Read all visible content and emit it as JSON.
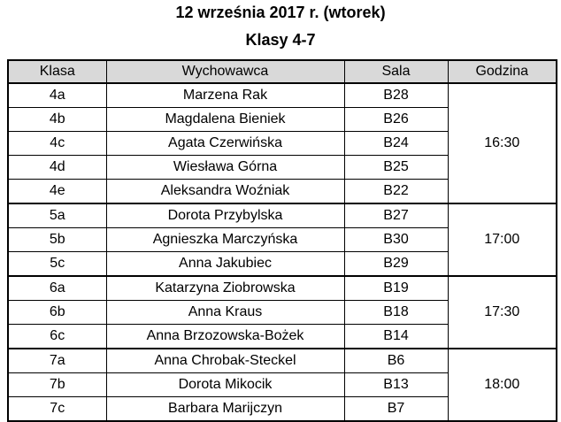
{
  "header": {
    "title": "12 września 2017 r. (wtorek)",
    "subtitle": "Klasy 4-7"
  },
  "table": {
    "columns": [
      "Klasa",
      "Wychowawca",
      "Sala",
      "Godzina"
    ],
    "groups": [
      {
        "time": "16:30",
        "rows": [
          [
            "4a",
            "Marzena Rak",
            "B28"
          ],
          [
            "4b",
            "Magdalena Bieniek",
            "B26"
          ],
          [
            "4c",
            "Agata Czerwińska",
            "B24"
          ],
          [
            "4d",
            "Wiesława Górna",
            "B25"
          ],
          [
            "4e",
            "Aleksandra Woźniak",
            "B22"
          ]
        ]
      },
      {
        "time": "17:00",
        "rows": [
          [
            "5a",
            "Dorota Przybylska",
            "B27"
          ],
          [
            "5b",
            "Agnieszka Marczyńska",
            "B30"
          ],
          [
            "5c",
            "Anna Jakubiec",
            "B29"
          ]
        ]
      },
      {
        "time": "17:30",
        "rows": [
          [
            "6a",
            "Katarzyna Ziobrowska",
            "B19"
          ],
          [
            "6b",
            "Anna Kraus",
            "B18"
          ],
          [
            "6c",
            "Anna Brzozowska-Bożek",
            "B14"
          ]
        ]
      },
      {
        "time": "18:00",
        "rows": [
          [
            "7a",
            "Anna Chrobak-Steckel",
            "B6"
          ],
          [
            "7b",
            "Dorota Mikocik",
            "B13"
          ],
          [
            "7c",
            "Barbara Marijczyn",
            "B7"
          ]
        ]
      }
    ]
  }
}
